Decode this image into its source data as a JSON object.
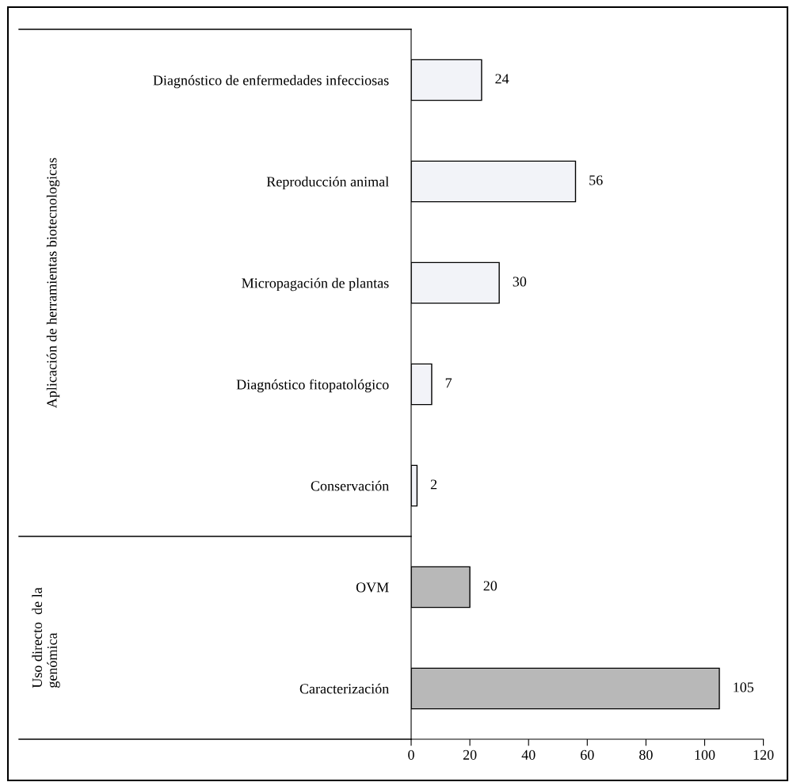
{
  "chart_data": {
    "type": "bar",
    "orientation": "horizontal",
    "categories": [
      "Diagnóstico de enfermedades infecciosas",
      "Reproducción animal",
      "Micropagación de plantas",
      "Diagnóstico fitopatológico",
      "Conservación",
      "OVM",
      "Caracterización"
    ],
    "values": [
      24,
      56,
      30,
      7,
      2,
      20,
      105
    ],
    "colors": [
      "#f2f3f8",
      "#f2f3f8",
      "#f2f3f8",
      "#f2f3f8",
      "#f2f3f8",
      "#b8b8b8",
      "#b8b8b8"
    ],
    "xlim": [
      0,
      120
    ],
    "xticks": [
      0,
      20,
      40,
      60,
      80,
      100,
      120
    ],
    "data_labels": true,
    "annotations": [
      "Aplicación de herramientas biotecnologicas",
      "Uso directo  de la\ngenómica"
    ]
  }
}
